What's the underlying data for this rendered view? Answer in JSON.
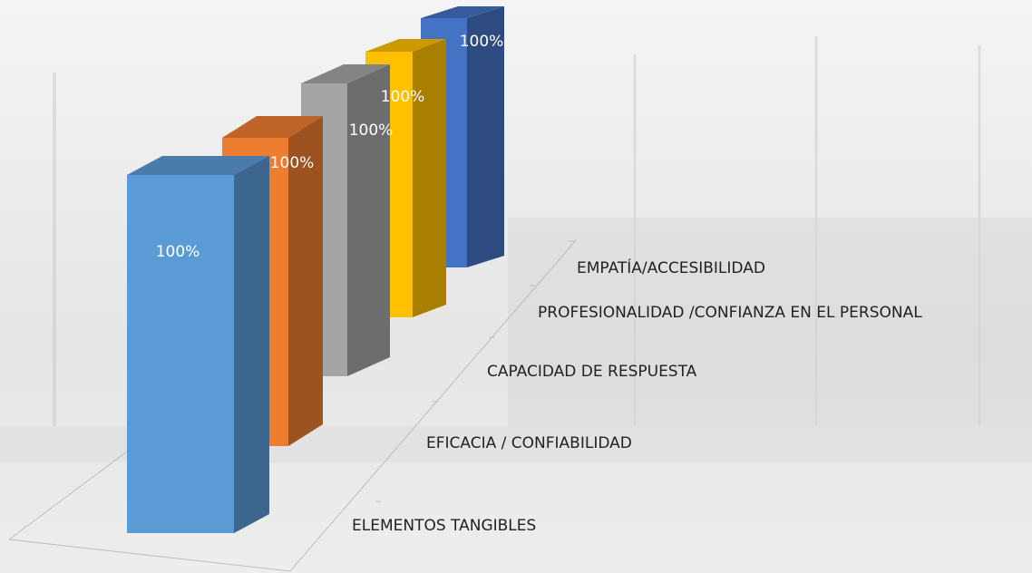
{
  "chart_data": {
    "type": "bar3d",
    "categories": [
      "ELEMENTOS TANGIBLES",
      "EFICACIA / CONFIABILIDAD",
      "CAPACIDAD DE RESPUESTA",
      "PROFESIONALIDAD /CONFIANZA EN EL PERSONAL",
      "EMPATÍA/ACCESIBILIDAD"
    ],
    "values": [
      100,
      100,
      100,
      100,
      100
    ],
    "value_labels": [
      "100%",
      "100%",
      "100%",
      "100%",
      "100%"
    ],
    "colors": [
      "#5b9bd5",
      "#ed7d31",
      "#a5a5a5",
      "#ffc000",
      "#4472c4"
    ]
  }
}
